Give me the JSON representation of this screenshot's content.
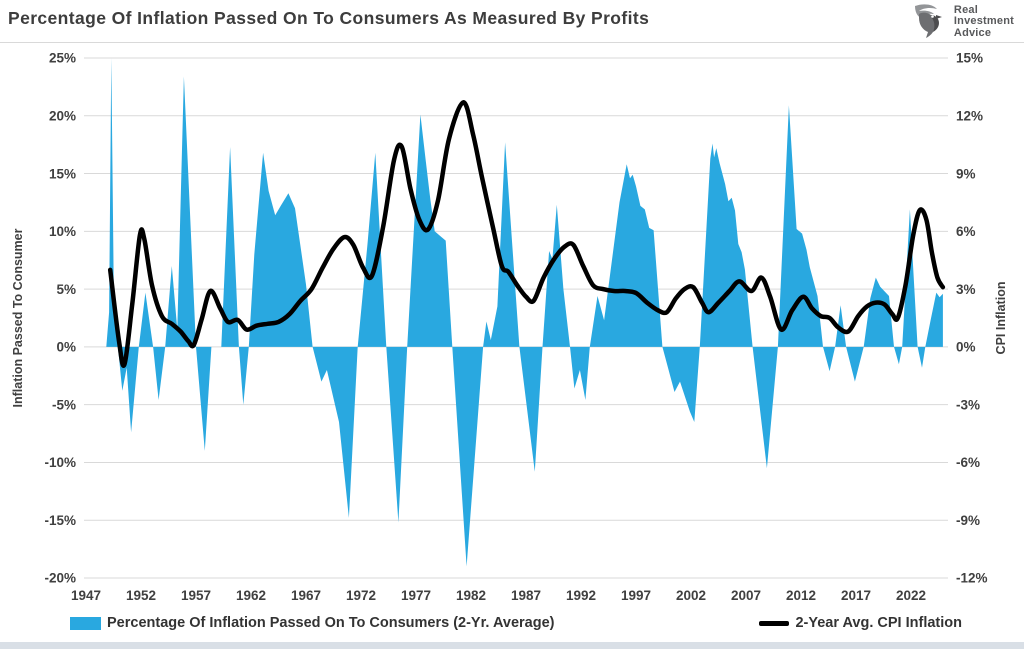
{
  "header": {
    "title": "Percentage Of Inflation Passed On To Consumers As Measured By Profits",
    "logo": {
      "line1": "Real",
      "line2": "Investment",
      "line3": "Advice"
    }
  },
  "colors": {
    "area": "#29a8e0",
    "line": "#000000",
    "grid": "#d9d9d9",
    "tick_text": "#404040",
    "title_text": "#3d3d3d",
    "footer_strip": "#d9dfe6"
  },
  "left_axis": {
    "title": "Inflation  Passed To Consumer",
    "ticks": [
      "25%",
      "20%",
      "15%",
      "10%",
      "5%",
      "0%",
      "-5%",
      "-10%",
      "-15%",
      "-20%"
    ],
    "max": 25,
    "min": -20,
    "step": 5
  },
  "right_axis": {
    "title": "CPI Inflation",
    "ticks": [
      "15%",
      "12%",
      "9%",
      "6%",
      "3%",
      "0%",
      "-3%",
      "-6%",
      "-9%",
      "-12%"
    ],
    "max": 15,
    "min": -12,
    "step": 3
  },
  "x_axis": {
    "ticks": [
      "1947",
      "1952",
      "1957",
      "1962",
      "1967",
      "1972",
      "1977",
      "1982",
      "1987",
      "1992",
      "1997",
      "2002",
      "2007",
      "2012",
      "2017",
      "2022"
    ],
    "start_year": 1947,
    "tick_interval": 5
  },
  "legend": [
    {
      "label": "Percentage Of Inflation Passed On To Consumers (2-Yr. Average)",
      "type": "area"
    },
    {
      "label": "2-Year Avg. CPI Inflation",
      "type": "line"
    }
  ],
  "chart_data": {
    "type": "combo",
    "title": "Percentage Of Inflation Passed On To Consumers As Measured By Profits",
    "x_range": [
      1946.8,
      2025.3
    ],
    "left_axis_range": [
      -20,
      25
    ],
    "right_axis_range": [
      -12,
      15
    ],
    "grid": "horizontal-only",
    "legend_position": "bottom",
    "series": [
      {
        "name": "Percentage Of Inflation Passed On To Consumers (2-Yr. Average)",
        "type": "area",
        "axis": "left",
        "color": "#29a8e0",
        "unit": "%",
        "points": [
          [
            1948.85,
            0
          ],
          [
            1949.1,
            3
          ],
          [
            1949.3,
            25
          ],
          [
            1949.55,
            3
          ],
          [
            1949.9,
            0
          ],
          [
            1950.3,
            -3.8
          ],
          [
            1950.7,
            -1.8
          ],
          [
            1951.1,
            -7.4
          ],
          [
            1951.8,
            0
          ],
          [
            1952.4,
            4.7
          ],
          [
            1953.1,
            0
          ],
          [
            1953.6,
            -4.6
          ],
          [
            1954.2,
            0
          ],
          [
            1954.8,
            7.0
          ],
          [
            1955.3,
            1.5
          ],
          [
            1955.9,
            23.4
          ],
          [
            1957.0,
            0
          ],
          [
            1957.8,
            -9.0
          ],
          [
            1958.4,
            0
          ],
          [
            1959.3,
            0
          ],
          [
            1960.1,
            17.3
          ],
          [
            1960.9,
            0
          ],
          [
            1961.3,
            -5.0
          ],
          [
            1961.8,
            0
          ],
          [
            1962.3,
            8.0
          ],
          [
            1963.1,
            16.8
          ],
          [
            1963.6,
            13.5
          ],
          [
            1964.2,
            11.4
          ],
          [
            1964.7,
            12.2
          ],
          [
            1965.4,
            13.3
          ],
          [
            1966.0,
            12.0
          ],
          [
            1966.5,
            8.7
          ],
          [
            1967.0,
            5.4
          ],
          [
            1967.6,
            0
          ],
          [
            1968.4,
            -3.0
          ],
          [
            1968.9,
            -2.0
          ],
          [
            1970.0,
            -6.5
          ],
          [
            1970.9,
            -14.8
          ],
          [
            1971.7,
            0
          ],
          [
            1972.6,
            9.0
          ],
          [
            1973.3,
            16.8
          ],
          [
            1974.3,
            0
          ],
          [
            1975.4,
            -15.2
          ],
          [
            1976.2,
            0
          ],
          [
            1977.4,
            20.1
          ],
          [
            1977.9,
            16.0
          ],
          [
            1978.3,
            12.8
          ],
          [
            1978.7,
            10.0
          ],
          [
            1979.2,
            9.6
          ],
          [
            1979.7,
            9.2
          ],
          [
            1980.3,
            0
          ],
          [
            1981.6,
            -19.0
          ],
          [
            1983.1,
            0
          ],
          [
            1983.4,
            2.2
          ],
          [
            1983.8,
            0.6
          ],
          [
            1984.4,
            3.5
          ],
          [
            1985.1,
            17.7
          ],
          [
            1986.4,
            0
          ],
          [
            1987.8,
            -10.8
          ],
          [
            1988.5,
            0
          ],
          [
            1989.1,
            8.3
          ],
          [
            1989.4,
            7.6
          ],
          [
            1989.8,
            12.3
          ],
          [
            1990.4,
            5.0
          ],
          [
            1991.0,
            0
          ],
          [
            1991.4,
            -3.6
          ],
          [
            1991.9,
            -2.0
          ],
          [
            1992.4,
            -4.6
          ],
          [
            1992.8,
            0
          ],
          [
            1993.5,
            4.4
          ],
          [
            1994.1,
            2.3
          ],
          [
            1995.5,
            12.5
          ],
          [
            1996.15,
            15.8
          ],
          [
            1996.45,
            14.6
          ],
          [
            1996.7,
            14.9
          ],
          [
            1997.0,
            13.9
          ],
          [
            1997.4,
            12.2
          ],
          [
            1997.8,
            11.9
          ],
          [
            1998.2,
            10.3
          ],
          [
            1998.6,
            10.1
          ],
          [
            1999.4,
            0
          ],
          [
            2000.5,
            -3.9
          ],
          [
            2001.0,
            -3.0
          ],
          [
            2001.9,
            -5.6
          ],
          [
            2002.3,
            -6.5
          ],
          [
            2002.8,
            0
          ],
          [
            2003.75,
            16.3
          ],
          [
            2003.95,
            17.6
          ],
          [
            2004.1,
            16.4
          ],
          [
            2004.3,
            17.2
          ],
          [
            2004.6,
            15.9
          ],
          [
            2005.1,
            14.1
          ],
          [
            2005.4,
            12.6
          ],
          [
            2005.7,
            12.9
          ],
          [
            2006.0,
            11.8
          ],
          [
            2006.3,
            8.9
          ],
          [
            2006.6,
            8.2
          ],
          [
            2006.9,
            6.7
          ],
          [
            2007.6,
            0
          ],
          [
            2008.9,
            -10.5
          ],
          [
            2009.9,
            0
          ],
          [
            2010.9,
            20.9
          ],
          [
            2011.6,
            10.2
          ],
          [
            2012.1,
            9.8
          ],
          [
            2012.5,
            8.4
          ],
          [
            2012.8,
            6.9
          ],
          [
            2013.5,
            4.4
          ],
          [
            2014.0,
            0
          ],
          [
            2014.6,
            -2.1
          ],
          [
            2015.1,
            0
          ],
          [
            2015.6,
            3.6
          ],
          [
            2016.1,
            0
          ],
          [
            2016.9,
            -3.0
          ],
          [
            2017.7,
            0
          ],
          [
            2018.3,
            4.2
          ],
          [
            2018.8,
            6.0
          ],
          [
            2019.2,
            5.2
          ],
          [
            2019.6,
            4.8
          ],
          [
            2020.0,
            4.4
          ],
          [
            2020.45,
            0
          ],
          [
            2020.9,
            -1.5
          ],
          [
            2021.2,
            0
          ],
          [
            2021.9,
            11.9
          ],
          [
            2022.6,
            0
          ],
          [
            2023.0,
            -1.8
          ],
          [
            2023.3,
            0
          ],
          [
            2023.8,
            2.4
          ],
          [
            2024.3,
            4.7
          ],
          [
            2024.6,
            4.3
          ],
          [
            2024.9,
            4.6
          ]
        ]
      },
      {
        "name": "2-Year Avg. CPI Inflation",
        "type": "line",
        "axis": "right",
        "color": "#000000",
        "unit": "%",
        "points": [
          [
            1949.2,
            4.0
          ],
          [
            1950.0,
            0.3
          ],
          [
            1950.5,
            -0.9
          ],
          [
            1951.2,
            2.2
          ],
          [
            1951.9,
            5.8
          ],
          [
            1952.3,
            5.6
          ],
          [
            1953.0,
            3.2
          ],
          [
            1953.9,
            1.6
          ],
          [
            1954.8,
            1.2
          ],
          [
            1955.6,
            0.8
          ],
          [
            1956.3,
            0.3
          ],
          [
            1956.8,
            0.1
          ],
          [
            1957.5,
            1.4
          ],
          [
            1958.3,
            2.9
          ],
          [
            1959.2,
            2.0
          ],
          [
            1959.9,
            1.3
          ],
          [
            1960.8,
            1.4
          ],
          [
            1961.6,
            0.9
          ],
          [
            1962.5,
            1.1
          ],
          [
            1963.5,
            1.2
          ],
          [
            1964.5,
            1.3
          ],
          [
            1965.5,
            1.7
          ],
          [
            1966.5,
            2.4
          ],
          [
            1967.5,
            3.0
          ],
          [
            1968.5,
            4.1
          ],
          [
            1969.5,
            5.1
          ],
          [
            1970.5,
            5.7
          ],
          [
            1971.3,
            5.3
          ],
          [
            1972.2,
            4.1
          ],
          [
            1973.0,
            3.7
          ],
          [
            1974.0,
            6.2
          ],
          [
            1975.0,
            9.7
          ],
          [
            1975.7,
            10.4
          ],
          [
            1976.5,
            8.2
          ],
          [
            1977.3,
            6.6
          ],
          [
            1978.1,
            6.1
          ],
          [
            1979.0,
            7.6
          ],
          [
            1980.0,
            10.8
          ],
          [
            1981.3,
            12.7
          ],
          [
            1982.2,
            11.0
          ],
          [
            1983.0,
            8.8
          ],
          [
            1984.0,
            6.2
          ],
          [
            1984.8,
            4.2
          ],
          [
            1985.4,
            3.9
          ],
          [
            1986.2,
            3.2
          ],
          [
            1987.0,
            2.6
          ],
          [
            1987.7,
            2.4
          ],
          [
            1988.6,
            3.6
          ],
          [
            1989.6,
            4.6
          ],
          [
            1990.5,
            5.2
          ],
          [
            1991.3,
            5.3
          ],
          [
            1992.2,
            4.2
          ],
          [
            1993.1,
            3.2
          ],
          [
            1994.0,
            3.0
          ],
          [
            1995.0,
            2.9
          ],
          [
            1996.0,
            2.9
          ],
          [
            1997.0,
            2.8
          ],
          [
            1998.0,
            2.3
          ],
          [
            1999.0,
            1.9
          ],
          [
            1999.8,
            1.8
          ],
          [
            2000.6,
            2.5
          ],
          [
            2001.4,
            3.0
          ],
          [
            2002.2,
            3.1
          ],
          [
            2003.0,
            2.3
          ],
          [
            2003.6,
            1.8
          ],
          [
            2004.5,
            2.3
          ],
          [
            2005.5,
            2.9
          ],
          [
            2006.4,
            3.4
          ],
          [
            2007.5,
            2.9
          ],
          [
            2008.4,
            3.6
          ],
          [
            2009.2,
            2.6
          ],
          [
            2010.2,
            0.9
          ],
          [
            2011.2,
            1.9
          ],
          [
            2012.2,
            2.6
          ],
          [
            2013.0,
            2.0
          ],
          [
            2013.8,
            1.6
          ],
          [
            2014.6,
            1.5
          ],
          [
            2015.4,
            1.0
          ],
          [
            2016.3,
            0.8
          ],
          [
            2017.2,
            1.6
          ],
          [
            2018.0,
            2.1
          ],
          [
            2018.8,
            2.3
          ],
          [
            2019.6,
            2.2
          ],
          [
            2020.3,
            1.7
          ],
          [
            2020.8,
            1.5
          ],
          [
            2021.5,
            3.2
          ],
          [
            2022.2,
            5.8
          ],
          [
            2022.8,
            7.1
          ],
          [
            2023.4,
            6.6
          ],
          [
            2023.9,
            4.9
          ],
          [
            2024.4,
            3.6
          ],
          [
            2024.9,
            3.1
          ]
        ]
      }
    ]
  }
}
